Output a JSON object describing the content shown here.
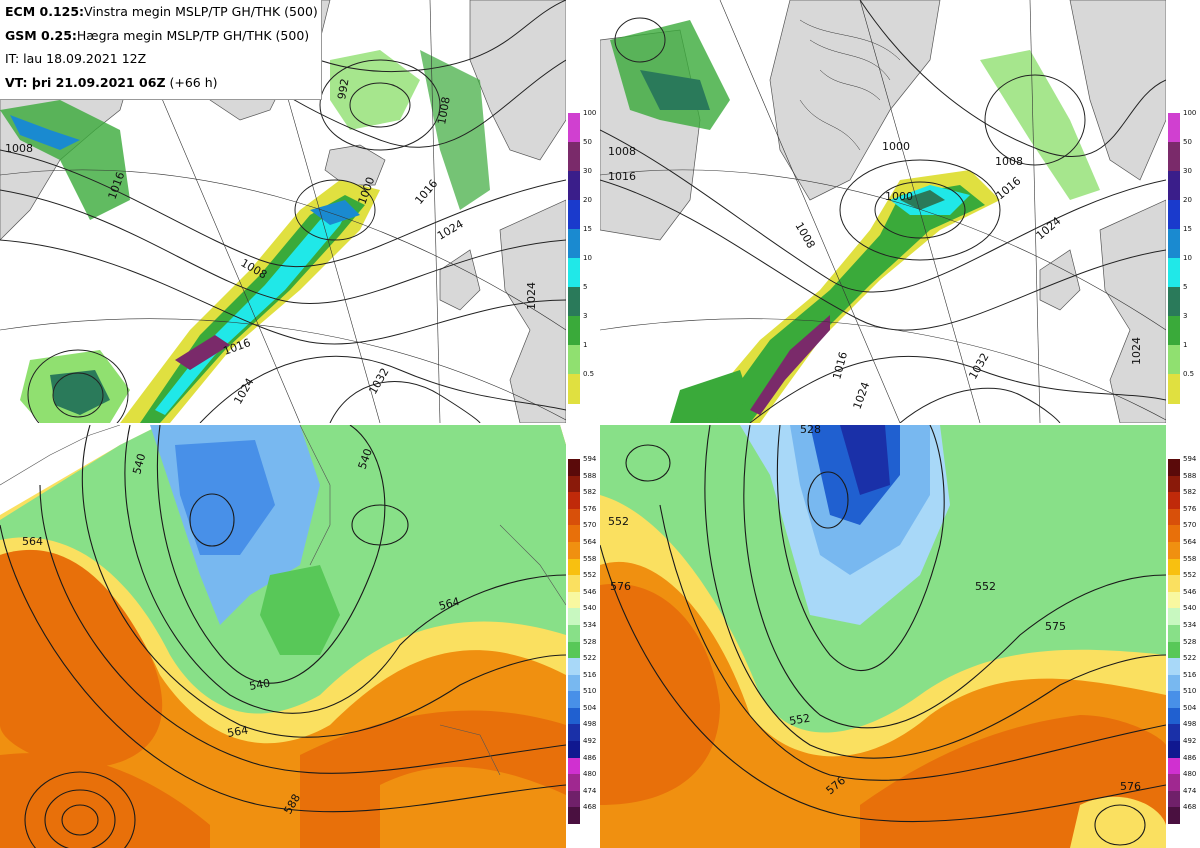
{
  "info_box": {
    "line1_bold": "ECM 0.125:",
    "line1_text": "Vinstra megin MSLP/TP GH/THK (500)",
    "line2_bold": "GSM 0.25:",
    "line2_text": "Hægra megin MSLP/TP GH/THK (500)",
    "line3_text": "IT: lau 18.09.2021 12Z",
    "line4_bold": "VT: þri 21.09.2021 06Z",
    "line4_text": " (+66 h)"
  },
  "precip_colorbar": {
    "ticks": [
      "100",
      "50",
      "30",
      "20",
      "15",
      "10",
      "5",
      "3",
      "1",
      "0.5"
    ],
    "colors": [
      "#d040d0",
      "#7a2a6a",
      "#3a1e8a",
      "#1a3acc",
      "#1a8ad0",
      "#20e8e8",
      "#2a7a5a",
      "#3aaa3a",
      "#90e070",
      "#e0e040"
    ]
  },
  "thickness_colorbar": {
    "ticks": [
      "594",
      "588",
      "582",
      "576",
      "570",
      "564",
      "558",
      "552",
      "546",
      "540",
      "534",
      "528",
      "522",
      "516",
      "510",
      "504",
      "498",
      "492",
      "486",
      "480",
      "474",
      "468"
    ],
    "colors": [
      "#5a0a0a",
      "#8a1a0a",
      "#c02a0a",
      "#d8500a",
      "#e8700a",
      "#f09010",
      "#f8c010",
      "#fae060",
      "#f8f8a0",
      "#c8f8c0",
      "#88e088",
      "#58c858",
      "#a8d8f8",
      "#78b8f0",
      "#4890e8",
      "#2060d0",
      "#1a30a8",
      "#101890",
      "#d030d0",
      "#a02890",
      "#70206a",
      "#4a1040"
    ]
  },
  "top_left_labels": {
    "isobars": [
      "1008",
      "1016",
      "992",
      "1008",
      "1000",
      "1008",
      "1016",
      "1024",
      "1016",
      "1024",
      "1032",
      "1024"
    ]
  },
  "top_right_labels": {
    "isobars": [
      "1000",
      "1008",
      "1016",
      "1008",
      "1000",
      "1008",
      "1016",
      "1024",
      "1016",
      "1032",
      "1024",
      "1024"
    ]
  },
  "bottom_left_labels": {
    "isohypses": [
      "540",
      "564",
      "540",
      "540",
      "564",
      "564",
      "588"
    ]
  },
  "bottom_right_labels": {
    "isohypses": [
      "528",
      "552",
      "576",
      "552",
      "552",
      "576",
      "575",
      "576"
    ]
  }
}
